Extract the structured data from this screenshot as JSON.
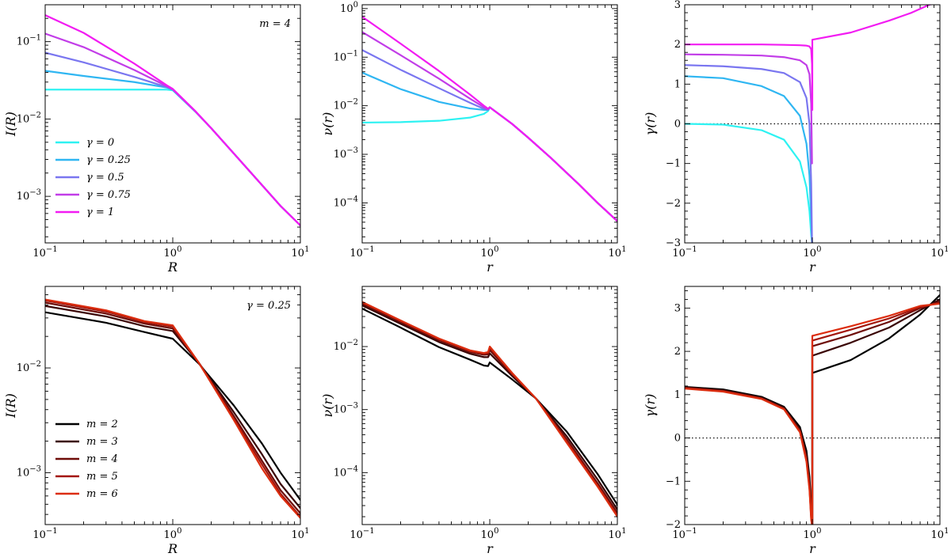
{
  "colors": {
    "gamma_series": [
      "#2ef2f2",
      "#2fb6f2",
      "#7a76f0",
      "#c23de8",
      "#f21cf2"
    ],
    "m_series": [
      "#000000",
      "#3a0606",
      "#6e0c08",
      "#a3150b",
      "#dc2d0f"
    ]
  },
  "chart_data": [
    {
      "id": "top-left",
      "type": "line",
      "scale": "log-log",
      "xlabel": "R",
      "ylabel": "I(R)",
      "xlim": [
        0.1,
        10
      ],
      "ylim": [
        0.00025,
        0.3
      ],
      "annotation": "m = 4",
      "legend": {
        "placement": "lower-left",
        "entries": [
          "γ = 0",
          "γ = 0.25",
          "γ = 0.5",
          "γ = 0.75",
          "γ = 1"
        ]
      },
      "palette": "gamma_series",
      "series": [
        {
          "name": "γ = 0",
          "x": [
            0.1,
            0.2,
            0.5,
            0.9,
            1.0,
            1.5,
            2,
            3,
            5,
            7,
            10
          ],
          "y": [
            0.024,
            0.024,
            0.024,
            0.024,
            0.0235,
            0.0125,
            0.0076,
            0.0036,
            0.0014,
            0.00075,
            0.00042
          ]
        },
        {
          "name": "γ = 0.25",
          "x": [
            0.1,
            0.2,
            0.5,
            0.9,
            1.0,
            1.5,
            2,
            3,
            5,
            7,
            10
          ],
          "y": [
            0.042,
            0.036,
            0.03,
            0.0255,
            0.0238,
            0.0125,
            0.0076,
            0.0036,
            0.0014,
            0.00075,
            0.00042
          ]
        },
        {
          "name": "γ = 0.5",
          "x": [
            0.1,
            0.2,
            0.5,
            0.9,
            1.0,
            1.5,
            2,
            3,
            5,
            7,
            10
          ],
          "y": [
            0.072,
            0.054,
            0.035,
            0.0258,
            0.024,
            0.0126,
            0.0076,
            0.0036,
            0.0014,
            0.00075,
            0.00042
          ]
        },
        {
          "name": "γ = 0.75",
          "x": [
            0.1,
            0.2,
            0.5,
            0.9,
            1.0,
            1.5,
            2,
            3,
            5,
            7,
            10
          ],
          "y": [
            0.127,
            0.085,
            0.043,
            0.0265,
            0.0242,
            0.0126,
            0.0076,
            0.0036,
            0.0014,
            0.00075,
            0.00042
          ]
        },
        {
          "name": "γ = 1",
          "x": [
            0.1,
            0.2,
            0.5,
            0.9,
            1.0,
            1.5,
            2,
            3,
            5,
            7,
            10
          ],
          "y": [
            0.22,
            0.13,
            0.052,
            0.0272,
            0.0245,
            0.0127,
            0.0076,
            0.0036,
            0.0014,
            0.00075,
            0.00042
          ]
        }
      ]
    },
    {
      "id": "top-middle",
      "type": "line",
      "scale": "log-log",
      "xlabel": "r",
      "ylabel": "ν(r)",
      "xlim": [
        0.1,
        10
      ],
      "ylim": [
        1.5e-05,
        1.2
      ],
      "palette": "gamma_series",
      "series": [
        {
          "name": "γ = 0",
          "x": [
            0.1,
            0.2,
            0.4,
            0.7,
            0.9,
            0.97,
            1.0,
            1.5,
            2,
            3,
            5,
            7,
            10
          ],
          "y": [
            0.0045,
            0.0046,
            0.0049,
            0.0057,
            0.0068,
            0.0078,
            0.0093,
            0.0042,
            0.0022,
            0.00085,
            0.00024,
            0.0001,
            4.2e-05
          ]
        },
        {
          "name": "γ = 0.25",
          "x": [
            0.1,
            0.2,
            0.4,
            0.7,
            0.9,
            0.97,
            1.0,
            1.5,
            2,
            3,
            5,
            7,
            10
          ],
          "y": [
            0.048,
            0.022,
            0.012,
            0.0088,
            0.0082,
            0.0082,
            0.0093,
            0.0042,
            0.0022,
            0.00085,
            0.00024,
            0.0001,
            4.2e-05
          ]
        },
        {
          "name": "γ = 0.5",
          "x": [
            0.1,
            0.2,
            0.4,
            0.7,
            0.9,
            0.97,
            1.0,
            1.5,
            2,
            3,
            5,
            7,
            10
          ],
          "y": [
            0.14,
            0.055,
            0.023,
            0.0115,
            0.0086,
            0.0083,
            0.0093,
            0.0042,
            0.0022,
            0.00085,
            0.00024,
            0.0001,
            4.2e-05
          ]
        },
        {
          "name": "γ = 0.75",
          "x": [
            0.1,
            0.2,
            0.4,
            0.7,
            0.9,
            0.97,
            1.0,
            1.5,
            2,
            3,
            5,
            7,
            10
          ],
          "y": [
            0.33,
            0.11,
            0.036,
            0.014,
            0.0093,
            0.0085,
            0.0093,
            0.0042,
            0.0022,
            0.00085,
            0.00024,
            0.0001,
            4.2e-05
          ]
        },
        {
          "name": "γ = 1",
          "x": [
            0.1,
            0.2,
            0.4,
            0.7,
            0.9,
            0.97,
            1.0,
            1.5,
            2,
            3,
            5,
            7,
            10
          ],
          "y": [
            0.68,
            0.19,
            0.052,
            0.017,
            0.01,
            0.0087,
            0.0093,
            0.0042,
            0.0022,
            0.00085,
            0.00024,
            0.0001,
            4.2e-05
          ]
        }
      ]
    },
    {
      "id": "top-right",
      "type": "line",
      "scale": "log-linear",
      "xlabel": "r",
      "ylabel": "γ(r)",
      "xlim": [
        0.1,
        10
      ],
      "ylim": [
        -3,
        3
      ],
      "zero_line": true,
      "palette": "gamma_series",
      "series": [
        {
          "name": "γ = 0",
          "x": [
            0.1,
            0.2,
            0.4,
            0.6,
            0.8,
            0.9,
            0.95,
            0.98,
            0.995
          ],
          "y": [
            0.0,
            -0.02,
            -0.16,
            -0.4,
            -0.95,
            -1.6,
            -2.2,
            -2.8,
            -3.0
          ]
        },
        {
          "name": "γ = 0.25",
          "x": [
            0.1,
            0.2,
            0.4,
            0.6,
            0.8,
            0.9,
            0.95,
            0.98,
            0.995
          ],
          "y": [
            1.2,
            1.15,
            0.95,
            0.7,
            0.2,
            -0.5,
            -1.3,
            -2.4,
            -3.0
          ]
        },
        {
          "name": "γ = 0.5",
          "x": [
            0.1,
            0.2,
            0.4,
            0.6,
            0.8,
            0.9,
            0.95,
            0.98,
            0.995
          ],
          "y": [
            1.48,
            1.45,
            1.38,
            1.28,
            1.05,
            0.65,
            0.0,
            -1.5,
            -3.0
          ]
        },
        {
          "name": "γ = 0.75",
          "x": [
            0.1,
            0.2,
            0.4,
            0.6,
            0.8,
            0.9,
            0.95,
            0.98,
            0.995
          ],
          "y": [
            1.75,
            1.74,
            1.72,
            1.68,
            1.6,
            1.48,
            1.25,
            0.5,
            -1.0
          ]
        },
        {
          "name": "γ = 1",
          "x": [
            0.1,
            0.2,
            0.4,
            0.6,
            0.8,
            0.9,
            0.95,
            0.98,
            0.995,
            1.0,
            1.0,
            2,
            4,
            6,
            8,
            10
          ],
          "y": [
            2.0,
            2.0,
            2.0,
            1.99,
            1.98,
            1.97,
            1.95,
            1.88,
            1.5,
            0.35,
            2.12,
            2.3,
            2.6,
            2.8,
            2.98,
            3.1
          ]
        }
      ]
    },
    {
      "id": "bottom-left",
      "type": "line",
      "scale": "log-log",
      "xlabel": "R",
      "ylabel": "I(R)",
      "xlim": [
        0.1,
        10
      ],
      "ylim": [
        0.00032,
        0.06
      ],
      "annotation": "γ = 0.25",
      "legend": {
        "placement": "lower-left",
        "entries": [
          "m = 2",
          "m = 3",
          "m = 4",
          "m = 5",
          "m = 6"
        ]
      },
      "palette": "m_series",
      "series": [
        {
          "name": "m = 2",
          "x": [
            0.1,
            0.3,
            0.6,
            1.0,
            1.6,
            3,
            5,
            7,
            10
          ],
          "y": [
            0.034,
            0.027,
            0.022,
            0.019,
            0.011,
            0.0044,
            0.0019,
            0.001,
            0.00055
          ]
        },
        {
          "name": "m = 3",
          "x": [
            0.1,
            0.3,
            0.6,
            1.0,
            1.6,
            3,
            5,
            7,
            10
          ],
          "y": [
            0.039,
            0.031,
            0.025,
            0.0225,
            0.0112,
            0.0038,
            0.0015,
            0.00078,
            0.00046
          ]
        },
        {
          "name": "m = 4",
          "x": [
            0.1,
            0.3,
            0.6,
            1.0,
            1.6,
            3,
            5,
            7,
            10
          ],
          "y": [
            0.042,
            0.033,
            0.0265,
            0.0238,
            0.0112,
            0.0035,
            0.0013,
            0.00068,
            0.00041
          ]
        },
        {
          "name": "m = 5",
          "x": [
            0.1,
            0.3,
            0.6,
            1.0,
            1.6,
            3,
            5,
            7,
            10
          ],
          "y": [
            0.044,
            0.0345,
            0.0275,
            0.0248,
            0.0112,
            0.0033,
            0.0012,
            0.00063,
            0.00038
          ]
        },
        {
          "name": "m = 6",
          "x": [
            0.1,
            0.3,
            0.6,
            1.0,
            1.6,
            3,
            5,
            7,
            10
          ],
          "y": [
            0.045,
            0.0355,
            0.028,
            0.0255,
            0.0112,
            0.0032,
            0.0011,
            0.0006,
            0.00037
          ]
        }
      ]
    },
    {
      "id": "bottom-middle",
      "type": "line",
      "scale": "log-log",
      "xlabel": "r",
      "ylabel": "ν(r)",
      "xlim": [
        0.1,
        10
      ],
      "ylim": [
        1.5e-05,
        0.09
      ],
      "palette": "m_series",
      "series": [
        {
          "name": "m = 2",
          "x": [
            0.1,
            0.2,
            0.4,
            0.7,
            0.9,
            0.97,
            1.0,
            1.5,
            2.3,
            4,
            7,
            10
          ],
          "y": [
            0.04,
            0.02,
            0.0098,
            0.0062,
            0.005,
            0.0049,
            0.0056,
            0.003,
            0.0015,
            0.00045,
            9.5e-05,
            3.1e-05
          ]
        },
        {
          "name": "m = 3",
          "x": [
            0.1,
            0.2,
            0.4,
            0.7,
            0.9,
            0.97,
            1.0,
            1.5,
            2.3,
            4,
            7,
            10
          ],
          "y": [
            0.045,
            0.023,
            0.0118,
            0.0077,
            0.0068,
            0.0068,
            0.0078,
            0.0034,
            0.0015,
            0.00038,
            7.8e-05,
            2.6e-05
          ]
        },
        {
          "name": "m = 4",
          "x": [
            0.1,
            0.2,
            0.4,
            0.7,
            0.9,
            0.97,
            1.0,
            1.5,
            2.3,
            4,
            7,
            10
          ],
          "y": [
            0.048,
            0.0245,
            0.0126,
            0.0082,
            0.0074,
            0.0075,
            0.0088,
            0.0036,
            0.0015,
            0.00034,
            6.8e-05,
            2.3e-05
          ]
        },
        {
          "name": "m = 5",
          "x": [
            0.1,
            0.2,
            0.4,
            0.7,
            0.9,
            0.97,
            1.0,
            1.5,
            2.3,
            4,
            7,
            10
          ],
          "y": [
            0.05,
            0.0255,
            0.0131,
            0.0085,
            0.0077,
            0.0079,
            0.0095,
            0.0037,
            0.0015,
            0.00032,
            6.3e-05,
            2.1e-05
          ]
        },
        {
          "name": "m = 6",
          "x": [
            0.1,
            0.2,
            0.4,
            0.7,
            0.9,
            0.97,
            1.0,
            1.5,
            2.3,
            4,
            7,
            10
          ],
          "y": [
            0.051,
            0.026,
            0.0134,
            0.0087,
            0.0079,
            0.0082,
            0.01,
            0.0038,
            0.0015,
            0.0003,
            6e-05,
            2e-05
          ]
        }
      ]
    },
    {
      "id": "bottom-right",
      "type": "line",
      "scale": "log-linear",
      "xlabel": "r",
      "ylabel": "γ(r)",
      "xlim": [
        0.1,
        10
      ],
      "ylim": [
        -2,
        3.5
      ],
      "zero_line": true,
      "palette": "m_series",
      "series": [
        {
          "name": "m = 2",
          "x": [
            0.1,
            0.2,
            0.4,
            0.6,
            0.8,
            0.9,
            0.95,
            0.98,
            0.995,
            1.0,
            1.0,
            2,
            4,
            7,
            10
          ],
          "y": [
            1.18,
            1.12,
            0.95,
            0.72,
            0.25,
            -0.3,
            -0.9,
            -1.6,
            -2.0,
            -2.0,
            1.5,
            1.8,
            2.3,
            2.85,
            3.3
          ]
        },
        {
          "name": "m = 3",
          "x": [
            0.1,
            0.2,
            0.4,
            0.6,
            0.8,
            0.9,
            0.95,
            0.98,
            0.995,
            1.0,
            1.0,
            2,
            4,
            7,
            10
          ],
          "y": [
            1.17,
            1.1,
            0.93,
            0.7,
            0.2,
            -0.4,
            -1.0,
            -1.7,
            -2.0,
            -2.0,
            1.9,
            2.2,
            2.55,
            2.95,
            3.2
          ]
        },
        {
          "name": "m = 4",
          "x": [
            0.1,
            0.2,
            0.4,
            0.6,
            0.8,
            0.9,
            0.95,
            0.98,
            0.995,
            1.0,
            1.0,
            2,
            4,
            7,
            10
          ],
          "y": [
            1.16,
            1.09,
            0.92,
            0.68,
            0.17,
            -0.45,
            -1.1,
            -1.8,
            -2.0,
            -2.0,
            2.12,
            2.38,
            2.68,
            3.0,
            3.15
          ]
        },
        {
          "name": "m = 5",
          "x": [
            0.1,
            0.2,
            0.4,
            0.6,
            0.8,
            0.9,
            0.95,
            0.98,
            0.995,
            1.0,
            1.0,
            2,
            4,
            7,
            10
          ],
          "y": [
            1.15,
            1.08,
            0.91,
            0.67,
            0.15,
            -0.5,
            -1.15,
            -1.85,
            -2.0,
            -2.0,
            2.25,
            2.5,
            2.76,
            3.02,
            3.12
          ]
        },
        {
          "name": "m = 6",
          "x": [
            0.1,
            0.2,
            0.4,
            0.6,
            0.8,
            0.9,
            0.95,
            0.98,
            0.995,
            1.0,
            1.0,
            2,
            4,
            7,
            10
          ],
          "y": [
            1.14,
            1.07,
            0.9,
            0.66,
            0.13,
            -0.55,
            -1.2,
            -1.9,
            -2.0,
            -2.0,
            2.36,
            2.58,
            2.82,
            3.05,
            3.1
          ]
        }
      ]
    }
  ]
}
